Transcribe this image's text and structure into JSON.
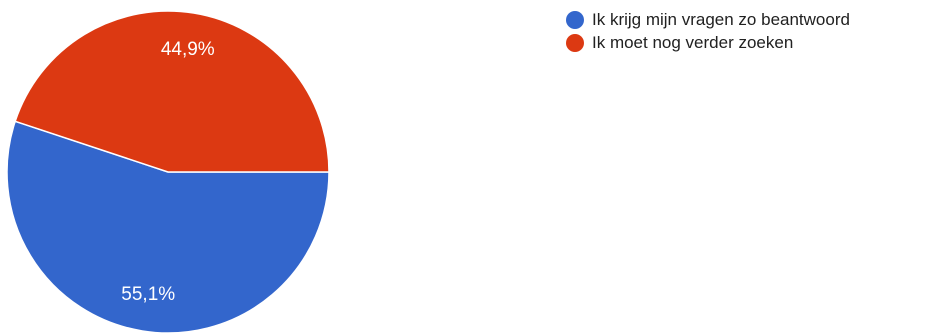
{
  "chart_data": {
    "type": "pie",
    "title": "",
    "start_angle_deg": 90,
    "direction": "clockwise",
    "slices": [
      {
        "label": "Ik krijg mijn vragen zo beantwoord",
        "value": 55.1,
        "display": "55,1%",
        "color": "#3366cc"
      },
      {
        "label": "Ik moet nog verder zoeken",
        "value": 44.9,
        "display": "44,9%",
        "color": "#dc3912"
      }
    ],
    "legend_position": "top-right"
  }
}
